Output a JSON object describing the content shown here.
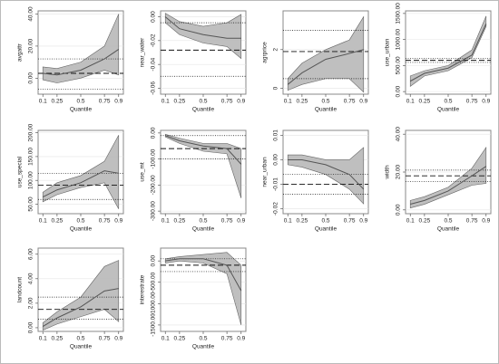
{
  "chart_data": [
    {
      "type": "line",
      "ylabel": "avgattr",
      "xlabel": "Quantile",
      "x": [
        0.1,
        0.25,
        0.5,
        0.75,
        0.9
      ],
      "xticks": [
        0.1,
        0.25,
        0.5,
        0.75,
        0.9
      ],
      "xlim": [
        0.05,
        0.95
      ],
      "ylim": [
        -10,
        42
      ],
      "yticks": [
        {
          "value": 0,
          "label": "0.00"
        },
        {
          "value": 20,
          "label": "20.00"
        },
        {
          "value": 40,
          "label": "40.00"
        }
      ],
      "values": [
        3,
        2,
        5,
        12,
        18
      ],
      "lower": [
        -1,
        -3,
        0,
        5,
        2
      ],
      "upper": [
        7,
        6,
        10,
        20,
        40
      ],
      "ols": 3,
      "ols_ci": [
        -7,
        12
      ],
      "band_color": "#b8b8b8",
      "line_color": "#555555"
    },
    {
      "type": "line",
      "ylabel": "near_water",
      "xlabel": "Quantile",
      "x": [
        0.1,
        0.25,
        0.5,
        0.75,
        0.9
      ],
      "xticks": [
        0.1,
        0.25,
        0.5,
        0.75,
        0.9
      ],
      "xlim": [
        0.05,
        0.95
      ],
      "ylim": [
        -0.065,
        0.005
      ],
      "yticks": [
        {
          "value": 0,
          "label": "0.00"
        },
        {
          "value": -0.02,
          "label": "-0.02"
        },
        {
          "value": -0.04,
          "label": "-0.04"
        },
        {
          "value": -0.06,
          "label": "-0.06"
        }
      ],
      "values": [
        0,
        -0.01,
        -0.015,
        -0.018,
        -0.018
      ],
      "lower": [
        -0.005,
        -0.015,
        -0.022,
        -0.025,
        -0.035
      ],
      "upper": [
        0.003,
        -0.004,
        -0.008,
        -0.005,
        0.002
      ],
      "ols": -0.028,
      "ols_ci": [
        -0.05,
        -0.005
      ],
      "band_color": "#b8b8b8",
      "line_color": "#555555"
    },
    {
      "type": "line",
      "ylabel": "agrprice",
      "xlabel": "Quantile",
      "x": [
        0.1,
        0.25,
        0.5,
        0.75,
        0.9
      ],
      "xticks": [
        0.1,
        0.25,
        0.5,
        0.75,
        0.9
      ],
      "xlim": [
        0.05,
        0.95
      ],
      "ylim": [
        -0.3,
        4
      ],
      "yticks": [
        0,
        2
      ],
      "values": [
        0.2,
        0.8,
        1.5,
        1.8,
        2.0
      ],
      "lower": [
        -0.1,
        0.2,
        0.5,
        0.5,
        -0.2
      ],
      "upper": [
        0.5,
        1.3,
        2.0,
        2.5,
        3.7
      ],
      "ols": 1.9,
      "ols_ci": [
        0.5,
        3.0
      ],
      "band_color": "#b8b8b8",
      "line_color": "#555555"
    },
    {
      "type": "line",
      "ylabel": "use_urban",
      "xlabel": "Quantile",
      "x": [
        0.1,
        0.25,
        0.5,
        0.75,
        0.9
      ],
      "xticks": [
        0.1,
        0.25,
        0.5,
        0.75,
        0.9
      ],
      "xlim": [
        0.05,
        0.95
      ],
      "ylim": [
        -50,
        1550
      ],
      "yticks": [
        {
          "value": 0,
          "label": "0.00"
        },
        {
          "value": 500,
          "label": "500.00"
        },
        {
          "value": 1000,
          "label": "1000.00"
        },
        {
          "value": 1500,
          "label": "1500.00"
        }
      ],
      "values": [
        200,
        350,
        450,
        700,
        1300
      ],
      "lower": [
        100,
        300,
        400,
        650,
        1250
      ],
      "upper": [
        300,
        400,
        500,
        800,
        1450
      ],
      "ols": 600,
      "ols_ci": [
        560,
        640
      ],
      "band_color": "#b8b8b8",
      "line_color": "#555555"
    },
    {
      "type": "line",
      "ylabel": "use_special",
      "xlabel": "Quantile",
      "x": [
        0.1,
        0.25,
        0.5,
        0.75,
        0.9
      ],
      "xticks": [
        0.1,
        0.25,
        0.5,
        0.75,
        0.9
      ],
      "xlim": [
        0.05,
        0.95
      ],
      "ylim": [
        30,
        205
      ],
      "yticks": [
        {
          "value": 50,
          "label": "50.00"
        },
        {
          "value": 100,
          "label": "100.00"
        },
        {
          "value": 150,
          "label": "150.00"
        },
        {
          "value": 200,
          "label": "200.00"
        }
      ],
      "values": [
        65,
        80,
        95,
        120,
        115
      ],
      "lower": [
        55,
        70,
        85,
        95,
        40
      ],
      "upper": [
        75,
        95,
        110,
        140,
        195
      ],
      "ols": 90,
      "ols_ci": [
        60,
        115
      ],
      "band_color": "#b8b8b8",
      "line_color": "#555555"
    },
    {
      "type": "line",
      "ylabel": "use_mt",
      "xlabel": "Quantile",
      "x": [
        0.1,
        0.25,
        0.5,
        0.75,
        0.9
      ],
      "xticks": [
        0.1,
        0.25,
        0.5,
        0.75,
        0.9
      ],
      "xlim": [
        0.05,
        0.95
      ],
      "ylim": [
        -310,
        10
      ],
      "yticks": [
        {
          "value": 0,
          "label": "0.00"
        },
        {
          "value": -100,
          "label": "-100.00"
        },
        {
          "value": -200,
          "label": "-200.00"
        },
        {
          "value": -300,
          "label": "-300.00"
        }
      ],
      "values": [
        -10,
        -30,
        -50,
        -60,
        -120
      ],
      "lower": [
        -15,
        -40,
        -70,
        -80,
        -250
      ],
      "upper": [
        -5,
        -20,
        -40,
        -40,
        -60
      ],
      "ols": -60,
      "ols_ci": [
        -100,
        -10
      ],
      "band_color": "#b8b8b8",
      "line_color": "#555555"
    },
    {
      "type": "line",
      "ylabel": "near_urban",
      "xlabel": "Quantile",
      "x": [
        0.1,
        0.25,
        0.5,
        0.75,
        0.9
      ],
      "xticks": [
        0.1,
        0.25,
        0.5,
        0.75,
        0.9
      ],
      "xlim": [
        0.05,
        0.95
      ],
      "ylim": [
        -0.022,
        0.012
      ],
      "yticks": [
        {
          "value": 0.01,
          "label": "0.01"
        },
        {
          "value": 0,
          "label": "0.00"
        },
        {
          "value": -0.01,
          "label": "-0.01"
        },
        {
          "value": -0.02,
          "label": "-0.02"
        }
      ],
      "values": [
        0,
        0,
        -0.002,
        -0.006,
        -0.012
      ],
      "lower": [
        -0.002,
        -0.003,
        -0.006,
        -0.012,
        -0.018
      ],
      "upper": [
        0.002,
        0.002,
        0,
        0,
        0.005
      ],
      "ols": -0.01,
      "ols_ci": [
        -0.014,
        -0.006
      ],
      "band_color": "#b8b8b8",
      "line_color": "#555555"
    },
    {
      "type": "line",
      "ylabel": "width",
      "xlabel": "Quantile",
      "x": [
        0.1,
        0.25,
        0.5,
        0.75,
        0.9
      ],
      "xticks": [
        0.1,
        0.25,
        0.5,
        0.75,
        0.9
      ],
      "xlim": [
        0.05,
        0.95
      ],
      "ylim": [
        -2,
        42
      ],
      "yticks": [
        {
          "value": 0,
          "label": "0.00"
        },
        {
          "value": 20,
          "label": "20.00"
        },
        {
          "value": 40,
          "label": "40.00"
        }
      ],
      "values": [
        3,
        5,
        10,
        18,
        23
      ],
      "lower": [
        1,
        3,
        8,
        13,
        14
      ],
      "upper": [
        5,
        7,
        12,
        22,
        33
      ],
      "ols": 18,
      "ols_ci": [
        15,
        21
      ],
      "band_color": "#b8b8b8",
      "line_color": "#555555"
    },
    {
      "type": "line",
      "ylabel": "landcount",
      "xlabel": "Quantile",
      "x": [
        0.1,
        0.25,
        0.5,
        0.75,
        0.9
      ],
      "xticks": [
        0.1,
        0.25,
        0.5,
        0.75,
        0.9
      ],
      "xlim": [
        0.05,
        0.95
      ],
      "ylim": [
        -0.3,
        6.5
      ],
      "yticks": [
        {
          "value": 0,
          "label": "0.00"
        },
        {
          "value": 2,
          "label": "2.00"
        },
        {
          "value": 4,
          "label": "4.00"
        },
        {
          "value": 6,
          "label": "6.00"
        }
      ],
      "values": [
        0.1,
        0.8,
        1.7,
        3.0,
        3.2
      ],
      "lower": [
        -0.2,
        0.3,
        0.9,
        1.5,
        0.5
      ],
      "upper": [
        0.4,
        1.3,
        2.5,
        5.0,
        5.5
      ],
      "ols": 1.5,
      "ols_ci": [
        0.7,
        2.5
      ],
      "band_color": "#b8b8b8",
      "line_color": "#555555"
    },
    {
      "type": "line",
      "ylabel": "interestrate",
      "xlabel": "Quantile",
      "x": [
        0.1,
        0.25,
        0.5,
        0.75,
        0.9
      ],
      "xticks": [
        0.1,
        0.25,
        0.5,
        0.75,
        0.9
      ],
      "xlim": [
        0.05,
        0.95
      ],
      "ylim": [
        -1650,
        300
      ],
      "yticks": [
        {
          "value": 0,
          "label": "0.00"
        },
        {
          "value": -500,
          "label": "-500.00"
        },
        {
          "value": -1000,
          "label": "-1000.00"
        },
        {
          "value": -1500,
          "label": "-1500.00"
        }
      ],
      "values": [
        0,
        50,
        50,
        -100,
        -700
      ],
      "lower": [
        -50,
        0,
        -50,
        -300,
        -1500
      ],
      "upper": [
        50,
        100,
        150,
        200,
        -100
      ],
      "ols": -100,
      "ols_ci": [
        -250,
        50
      ],
      "band_color": "#b8b8b8",
      "line_color": "#555555"
    }
  ]
}
